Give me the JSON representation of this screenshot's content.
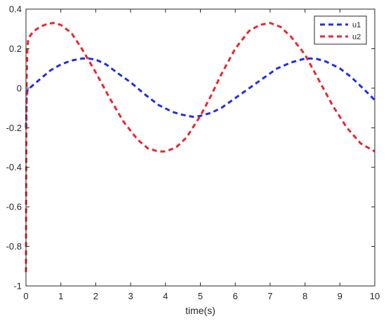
{
  "chart_data": {
    "type": "line",
    "title": "",
    "xlabel": "time(s)",
    "ylabel": "",
    "xlim": [
      0,
      10
    ],
    "ylim": [
      -1,
      0.4
    ],
    "xticks": [
      0,
      1,
      2,
      3,
      4,
      5,
      6,
      7,
      8,
      9,
      10
    ],
    "xtick_labels": [
      "0",
      "1",
      "2",
      "3",
      "4",
      "5",
      "6",
      "7",
      "8",
      "9",
      "10"
    ],
    "yticks": [
      -1,
      -0.8,
      -0.6,
      -0.4,
      -0.2,
      0,
      0.2,
      0.4
    ],
    "ytick_labels": [
      "-1",
      "-0.8",
      "-0.6",
      "-0.4",
      "-0.2",
      "0",
      "0.2",
      "0.4"
    ],
    "grid": false,
    "legend_position": "top-right",
    "series": [
      {
        "name": "u1",
        "color": "#1f2ee8",
        "line_style": "dashed",
        "x": [
          0,
          0.02,
          0.05,
          0.1,
          0.3,
          0.5,
          0.7,
          1.0,
          1.3,
          1.6,
          1.8,
          2.0,
          2.3,
          2.6,
          3.0,
          3.4,
          3.8,
          4.2,
          4.5,
          4.8,
          5.0,
          5.3,
          5.6,
          6.0,
          6.4,
          6.8,
          7.2,
          7.6,
          8.0,
          8.3,
          8.6,
          9.0,
          9.3,
          9.6,
          10.0
        ],
        "y": [
          -0.2,
          -0.05,
          0.0,
          0.0,
          0.03,
          0.06,
          0.09,
          0.12,
          0.14,
          0.15,
          0.15,
          0.145,
          0.12,
          0.08,
          0.03,
          -0.03,
          -0.085,
          -0.12,
          -0.135,
          -0.145,
          -0.14,
          -0.125,
          -0.1,
          -0.05,
          0.0,
          0.05,
          0.1,
          0.13,
          0.15,
          0.15,
          0.135,
          0.1,
          0.06,
          0.01,
          -0.06
        ]
      },
      {
        "name": "u2",
        "color": "#e8262e",
        "line_style": "dashed",
        "x": [
          0,
          0.01,
          0.02,
          0.04,
          0.06,
          0.1,
          0.2,
          0.4,
          0.6,
          0.8,
          1.0,
          1.3,
          1.6,
          2.0,
          2.4,
          2.8,
          3.2,
          3.5,
          3.8,
          4.0,
          4.3,
          4.6,
          5.0,
          5.3,
          5.6,
          6.0,
          6.4,
          6.7,
          7.0,
          7.3,
          7.6,
          8.0,
          8.4,
          8.8,
          9.2,
          9.6,
          10.0
        ],
        "y": [
          -0.93,
          -0.3,
          0.05,
          0.2,
          0.24,
          0.26,
          0.285,
          0.31,
          0.325,
          0.33,
          0.32,
          0.28,
          0.2,
          0.08,
          -0.05,
          -0.17,
          -0.26,
          -0.305,
          -0.32,
          -0.32,
          -0.3,
          -0.25,
          -0.14,
          -0.04,
          0.07,
          0.2,
          0.29,
          0.32,
          0.33,
          0.31,
          0.26,
          0.17,
          0.04,
          -0.09,
          -0.2,
          -0.28,
          -0.32
        ]
      }
    ]
  }
}
